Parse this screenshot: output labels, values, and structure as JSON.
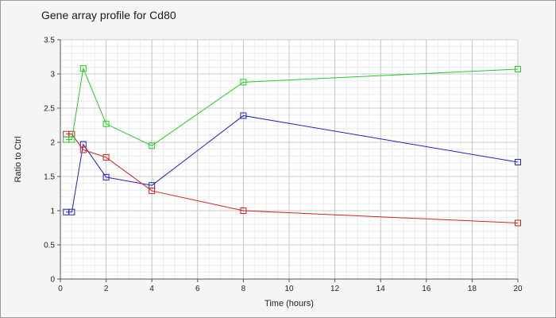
{
  "chart_data": {
    "type": "line",
    "title": "Gene array profile for Cd80",
    "xlabel": "Time (hours)",
    "ylabel": "Ratio to Ctrl",
    "xlim": [
      0,
      20
    ],
    "ylim": [
      0,
      3.5
    ],
    "xticks": [
      0,
      2,
      4,
      6,
      8,
      10,
      12,
      14,
      16,
      18,
      20
    ],
    "yticks": [
      0,
      0.5,
      1,
      1.5,
      2,
      2.5,
      3,
      3.5
    ],
    "grid": true,
    "minor_grid": true,
    "legend": "none",
    "marker": "square",
    "series": [
      {
        "color": "#2222bb",
        "x": [
          0.25,
          0.5,
          1,
          2,
          4,
          8,
          20
        ],
        "y": [
          0.98,
          0.98,
          1.97,
          1.49,
          1.37,
          2.39,
          1.71
        ]
      },
      {
        "color": "#cc2222",
        "x": [
          0.25,
          0.5,
          1,
          2,
          4,
          8,
          20
        ],
        "y": [
          2.12,
          2.12,
          1.89,
          1.78,
          1.29,
          1.0,
          0.82
        ]
      },
      {
        "color": "#22cc22",
        "x": [
          0.25,
          0.5,
          1,
          2,
          4,
          8,
          20
        ],
        "y": [
          2.04,
          2.04,
          3.08,
          2.27,
          1.95,
          2.88,
          3.07
        ]
      }
    ]
  }
}
